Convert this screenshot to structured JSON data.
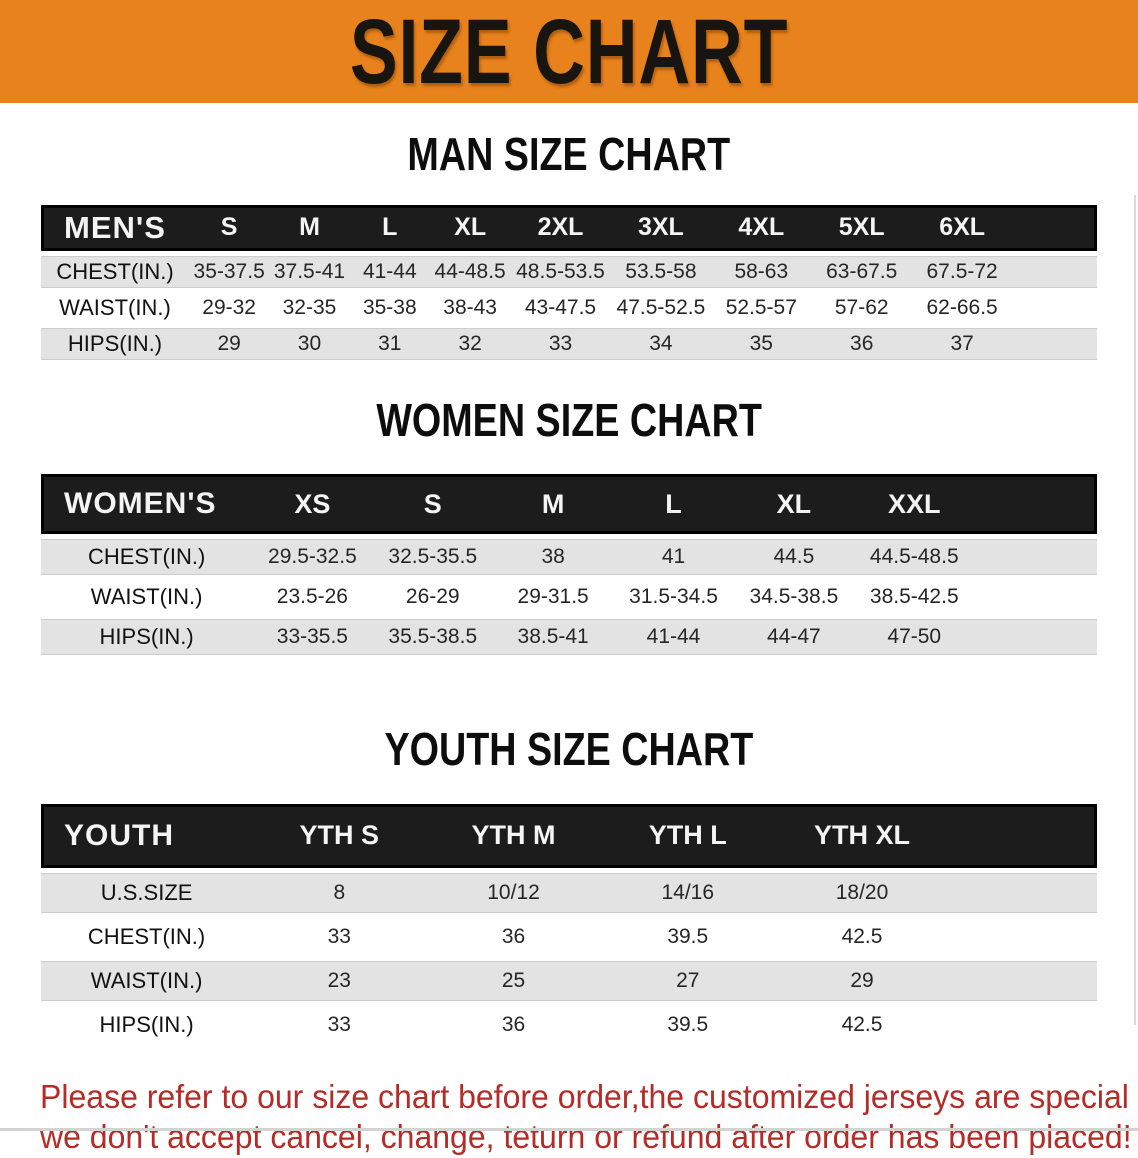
{
  "banner": {
    "title": "SIZE CHART",
    "bg_color": "#E8821C",
    "text_color": "#181410"
  },
  "sections": [
    {
      "heading": "MAN SIZE CHART",
      "table": {
        "header": [
          "MEN'S",
          "S",
          "M",
          "L",
          "XL",
          "2XL",
          "3XL",
          "4XL",
          "5XL",
          "6XL"
        ],
        "rows": [
          [
            "CHEST(IN.)",
            "35-37.5",
            "37.5-41",
            "41-44",
            "44-48.5",
            "48.5-53.5",
            "53.5-58",
            "58-63",
            "63-67.5",
            "67.5-72"
          ],
          [
            "WAIST(IN.)",
            "29-32",
            "32-35",
            "35-38",
            "38-43",
            "43-47.5",
            "47.5-52.5",
            "52.5-57",
            "57-62",
            "62-66.5"
          ],
          [
            "HIPS(IN.)",
            "29",
            "30",
            "31",
            "32",
            "33",
            "34",
            "35",
            "36",
            "37"
          ]
        ]
      }
    },
    {
      "heading": "WOMEN SIZE CHART",
      "table": {
        "header": [
          "WOMEN'S",
          "XS",
          "S",
          "M",
          "L",
          "XL",
          "XXL"
        ],
        "rows": [
          [
            "CHEST(IN.)",
            "29.5-32.5",
            "32.5-35.5",
            "38",
            "41",
            "44.5",
            "44.5-48.5"
          ],
          [
            "WAIST(IN.)",
            "23.5-26",
            "26-29",
            "29-31.5",
            "31.5-34.5",
            "34.5-38.5",
            "38.5-42.5"
          ],
          [
            "HIPS(IN.)",
            "33-35.5",
            "35.5-38.5",
            "38.5-41",
            "41-44",
            "44-47",
            "47-50"
          ]
        ]
      }
    },
    {
      "heading": "YOUTH SIZE CHART",
      "table": {
        "header": [
          "YOUTH",
          "YTH S",
          "YTH M",
          "YTH L",
          "YTH XL"
        ],
        "rows": [
          [
            "U.S.SIZE",
            "8",
            "10/12",
            "14/16",
            "18/20"
          ],
          [
            "CHEST(IN.)",
            "33",
            "36",
            "39.5",
            "42.5"
          ],
          [
            "WAIST(IN.)",
            "23",
            "25",
            "27",
            "29"
          ],
          [
            "HIPS(IN.)",
            "33",
            "36",
            "39.5",
            "42.5"
          ]
        ]
      }
    }
  ],
  "disclaimer": {
    "line1": "Please refer to our size chart before order,the customized jerseys are special products,",
    "line2": "we don't accept cancel, change, teturn or refund after order has been placed!",
    "color": "#B52B27"
  },
  "colors": {
    "banner_orange": "#E8821C",
    "table_header_black": "#1C1C1C",
    "row_shade_gray": "#E3E3E3",
    "row_plain_white": "#FFFFFF",
    "disclaimer_red": "#B52B27"
  }
}
